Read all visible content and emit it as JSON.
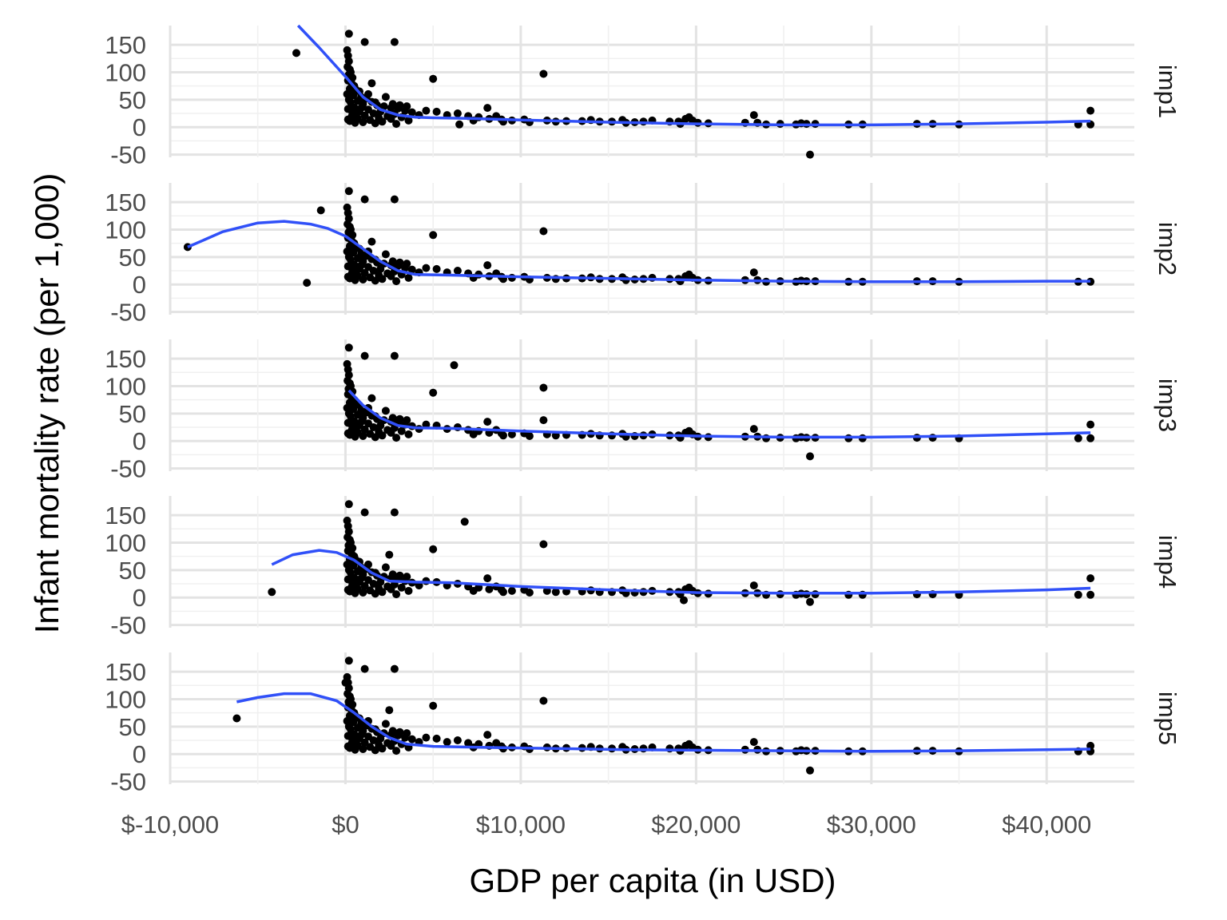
{
  "chart_data": {
    "type": "scatter",
    "title": "",
    "xlabel": "GDP per capita (in USD)",
    "ylabel": "Infant mortality rate (per 1,000)",
    "xlim": [
      -10000,
      45000
    ],
    "ylim": [
      -55,
      185
    ],
    "x_ticks": [
      -10000,
      0,
      10000,
      20000,
      30000,
      40000
    ],
    "x_tick_labels": [
      "$-10,000",
      "$0",
      "$10,000",
      "$20,000",
      "$30,000",
      "$40,000"
    ],
    "y_ticks": [
      -50,
      0,
      50,
      100,
      150
    ],
    "y_tick_labels": [
      "-50",
      "0",
      "50",
      "100",
      "150"
    ],
    "grid": true,
    "point_color": "#000000",
    "smooth_color": "#3050f8",
    "panels": [
      {
        "label": "imp1",
        "points": [
          [
            -2800,
            135
          ],
          [
            200,
            170
          ],
          [
            1100,
            155
          ],
          [
            2800,
            155
          ],
          [
            11300,
            97
          ],
          [
            5000,
            88
          ],
          [
            1500,
            80
          ],
          [
            6500,
            5
          ],
          [
            26500,
            -50
          ],
          [
            42500,
            30
          ],
          [
            42500,
            5
          ],
          [
            41800,
            5
          ]
        ],
        "smooth": [
          [
            -2700,
            185
          ],
          [
            -1500,
            145
          ],
          [
            0,
            92
          ],
          [
            1000,
            55
          ],
          [
            2000,
            32
          ],
          [
            3000,
            22
          ],
          [
            4000,
            18
          ],
          [
            5000,
            17
          ],
          [
            7000,
            16
          ],
          [
            10000,
            13
          ],
          [
            15000,
            9
          ],
          [
            20000,
            6
          ],
          [
            25000,
            4
          ],
          [
            30000,
            4
          ],
          [
            35000,
            6
          ],
          [
            40000,
            9
          ],
          [
            42500,
            11
          ]
        ]
      },
      {
        "label": "imp2",
        "points": [
          [
            -9000,
            68
          ],
          [
            -2200,
            3
          ],
          [
            -1400,
            135
          ],
          [
            200,
            170
          ],
          [
            1100,
            155
          ],
          [
            2800,
            155
          ],
          [
            11300,
            97
          ],
          [
            5000,
            90
          ],
          [
            1500,
            78
          ],
          [
            42500,
            5
          ],
          [
            41800,
            5
          ]
        ],
        "smooth": [
          [
            -9000,
            68
          ],
          [
            -7000,
            96
          ],
          [
            -5000,
            112
          ],
          [
            -3500,
            115
          ],
          [
            -2000,
            110
          ],
          [
            -1000,
            102
          ],
          [
            0,
            88
          ],
          [
            1000,
            65
          ],
          [
            2000,
            42
          ],
          [
            3000,
            25
          ],
          [
            4000,
            18
          ],
          [
            6000,
            17
          ],
          [
            10000,
            14
          ],
          [
            15000,
            11
          ],
          [
            20000,
            8
          ],
          [
            25000,
            6
          ],
          [
            30000,
            5
          ],
          [
            35000,
            5
          ],
          [
            40000,
            6
          ],
          [
            42500,
            6
          ]
        ]
      },
      {
        "label": "imp3",
        "points": [
          [
            200,
            170
          ],
          [
            1100,
            155
          ],
          [
            2800,
            155
          ],
          [
            6200,
            138
          ],
          [
            11300,
            97
          ],
          [
            11300,
            38
          ],
          [
            5000,
            88
          ],
          [
            1500,
            78
          ],
          [
            26500,
            -28
          ],
          [
            42500,
            30
          ],
          [
            42500,
            5
          ],
          [
            41800,
            5
          ]
        ],
        "smooth": [
          [
            200,
            92
          ],
          [
            1000,
            65
          ],
          [
            2000,
            42
          ],
          [
            3000,
            28
          ],
          [
            4000,
            24
          ],
          [
            6000,
            23
          ],
          [
            10000,
            18
          ],
          [
            15000,
            13
          ],
          [
            20000,
            9
          ],
          [
            25000,
            7
          ],
          [
            30000,
            7
          ],
          [
            35000,
            9
          ],
          [
            40000,
            13
          ],
          [
            42500,
            15
          ]
        ]
      },
      {
        "label": "imp4",
        "points": [
          [
            -4200,
            10
          ],
          [
            200,
            170
          ],
          [
            1100,
            155
          ],
          [
            2800,
            155
          ],
          [
            6800,
            138
          ],
          [
            11300,
            97
          ],
          [
            5000,
            88
          ],
          [
            2500,
            78
          ],
          [
            26500,
            -8
          ],
          [
            19300,
            -5
          ],
          [
            42500,
            35
          ],
          [
            42500,
            5
          ],
          [
            41800,
            5
          ]
        ],
        "smooth": [
          [
            -4200,
            60
          ],
          [
            -3000,
            78
          ],
          [
            -1500,
            86
          ],
          [
            -500,
            82
          ],
          [
            500,
            68
          ],
          [
            1500,
            45
          ],
          [
            2500,
            30
          ],
          [
            4000,
            28
          ],
          [
            6000,
            27
          ],
          [
            10000,
            20
          ],
          [
            15000,
            14
          ],
          [
            20000,
            9
          ],
          [
            25000,
            8
          ],
          [
            30000,
            8
          ],
          [
            35000,
            10
          ],
          [
            40000,
            14
          ],
          [
            42500,
            17
          ]
        ]
      },
      {
        "label": "imp5",
        "points": [
          [
            -6200,
            65
          ],
          [
            0,
            130
          ],
          [
            200,
            170
          ],
          [
            1100,
            155
          ],
          [
            2800,
            155
          ],
          [
            11300,
            97
          ],
          [
            5000,
            88
          ],
          [
            2500,
            80
          ],
          [
            26500,
            -30
          ],
          [
            42500,
            15
          ],
          [
            42500,
            5
          ],
          [
            41800,
            5
          ]
        ],
        "smooth": [
          [
            -6200,
            95
          ],
          [
            -5000,
            103
          ],
          [
            -3500,
            110
          ],
          [
            -2000,
            110
          ],
          [
            -500,
            97
          ],
          [
            500,
            75
          ],
          [
            1500,
            50
          ],
          [
            2500,
            30
          ],
          [
            3500,
            18
          ],
          [
            5000,
            14
          ],
          [
            8000,
            12
          ],
          [
            12000,
            10
          ],
          [
            16000,
            8
          ],
          [
            20000,
            7
          ],
          [
            25000,
            6
          ],
          [
            30000,
            5
          ],
          [
            35000,
            6
          ],
          [
            40000,
            8
          ],
          [
            42500,
            9
          ]
        ]
      }
    ],
    "shared_points": [
      [
        100,
        140
      ],
      [
        150,
        130
      ],
      [
        200,
        120
      ],
      [
        120,
        110
      ],
      [
        250,
        105
      ],
      [
        300,
        100
      ],
      [
        180,
        95
      ],
      [
        400,
        90
      ],
      [
        150,
        85
      ],
      [
        350,
        80
      ],
      [
        500,
        75
      ],
      [
        250,
        70
      ],
      [
        600,
        68
      ],
      [
        800,
        65
      ],
      [
        100,
        60
      ],
      [
        450,
        58
      ],
      [
        900,
        55
      ],
      [
        1200,
        52
      ],
      [
        200,
        50
      ],
      [
        700,
        48
      ],
      [
        1500,
        46
      ],
      [
        300,
        45
      ],
      [
        1000,
        42
      ],
      [
        1800,
        40
      ],
      [
        2200,
        38
      ],
      [
        500,
        36
      ],
      [
        2600,
        35
      ],
      [
        3000,
        34
      ],
      [
        150,
        33
      ],
      [
        1300,
        32
      ],
      [
        3400,
        30
      ],
      [
        800,
        29
      ],
      [
        2000,
        28
      ],
      [
        3800,
        27
      ],
      [
        400,
        26
      ],
      [
        1600,
        25
      ],
      [
        2800,
        24
      ],
      [
        600,
        23
      ],
      [
        4200,
        22
      ],
      [
        1100,
        21
      ],
      [
        2400,
        20
      ],
      [
        350,
        19
      ],
      [
        3200,
        18
      ],
      [
        1900,
        17
      ],
      [
        700,
        16
      ],
      [
        2600,
        15
      ],
      [
        150,
        14
      ],
      [
        1400,
        13
      ],
      [
        3600,
        12
      ],
      [
        250,
        11
      ],
      [
        2100,
        10
      ],
      [
        1000,
        9
      ],
      [
        550,
        8
      ],
      [
        1700,
        7
      ],
      [
        2900,
        6
      ],
      [
        400,
        20
      ],
      [
        900,
        35
      ],
      [
        1300,
        60
      ],
      [
        1700,
        45
      ],
      [
        2300,
        55
      ],
      [
        2700,
        42
      ],
      [
        3100,
        40
      ],
      [
        3500,
        38
      ],
      [
        4600,
        30
      ],
      [
        5200,
        28
      ],
      [
        5800,
        22
      ],
      [
        6400,
        25
      ],
      [
        7000,
        20
      ],
      [
        7600,
        18
      ],
      [
        8200,
        15
      ],
      [
        8600,
        20
      ],
      [
        8900,
        14
      ],
      [
        9500,
        12
      ],
      [
        10200,
        14
      ],
      [
        11500,
        12
      ],
      [
        12000,
        10
      ],
      [
        12600,
        11
      ],
      [
        13500,
        11
      ],
      [
        14000,
        13
      ],
      [
        15200,
        10
      ],
      [
        15800,
        13
      ],
      [
        16500,
        9
      ],
      [
        17000,
        10
      ],
      [
        17500,
        12
      ],
      [
        18500,
        10
      ],
      [
        19100,
        6
      ],
      [
        19400,
        15
      ],
      [
        19600,
        18
      ],
      [
        19800,
        12
      ],
      [
        20100,
        8
      ],
      [
        20700,
        7
      ],
      [
        22800,
        8
      ],
      [
        23500,
        8
      ],
      [
        24000,
        5
      ],
      [
        24800,
        6
      ],
      [
        25700,
        5
      ],
      [
        26000,
        7
      ],
      [
        26300,
        6
      ],
      [
        26800,
        6
      ],
      [
        28700,
        5
      ],
      [
        29500,
        5
      ],
      [
        32600,
        6
      ],
      [
        33500,
        6
      ],
      [
        35000,
        5
      ],
      [
        8100,
        35
      ],
      [
        14500,
        10
      ],
      [
        16000,
        8
      ],
      [
        23300,
        22
      ],
      [
        19000,
        10
      ],
      [
        7300,
        12
      ],
      [
        9000,
        10
      ],
      [
        10500,
        9
      ]
    ]
  }
}
